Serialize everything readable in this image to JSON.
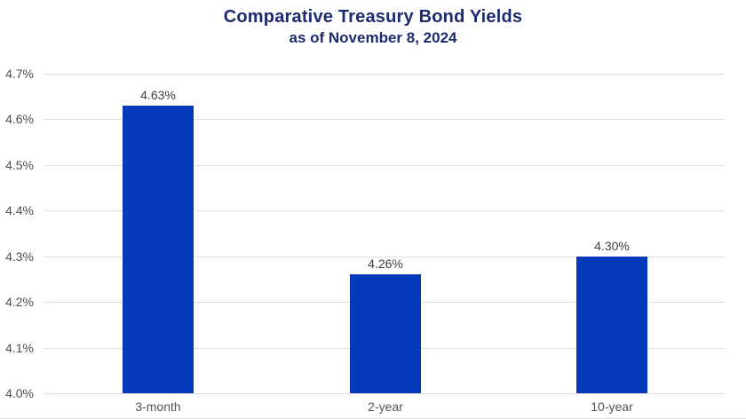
{
  "title": "Comparative Treasury Bond Yields",
  "subtitle": "as of November 8, 2024",
  "colors": {
    "title_navy": "#1c2b6e",
    "bar_blue": "#0439b9",
    "gridline": "#e2e2e2",
    "y_tick_text": "#4d4d4f",
    "x_tick_text": "#55565a",
    "value_label_text": "#3f3f41",
    "bottom_rule": "#e0e0e0"
  },
  "chart_data": {
    "type": "bar",
    "title": "Comparative Treasury Bond Yields",
    "subtitle": "as of November 8, 2024",
    "categories": [
      "3-month",
      "2-year",
      "10-year"
    ],
    "values": [
      4.63,
      4.26,
      4.3
    ],
    "value_labels": [
      "4.63%",
      "4.26%",
      "4.30%"
    ],
    "xlabel": "",
    "ylabel": "",
    "ylim": [
      4.0,
      4.7
    ],
    "ytick_step": 0.1,
    "ytick_labels": [
      "4.0%",
      "4.1%",
      "4.2%",
      "4.3%",
      "4.4%",
      "4.5%",
      "4.6%",
      "4.7%"
    ],
    "grid": true,
    "legend": false,
    "bar_color": "#0439b9"
  }
}
